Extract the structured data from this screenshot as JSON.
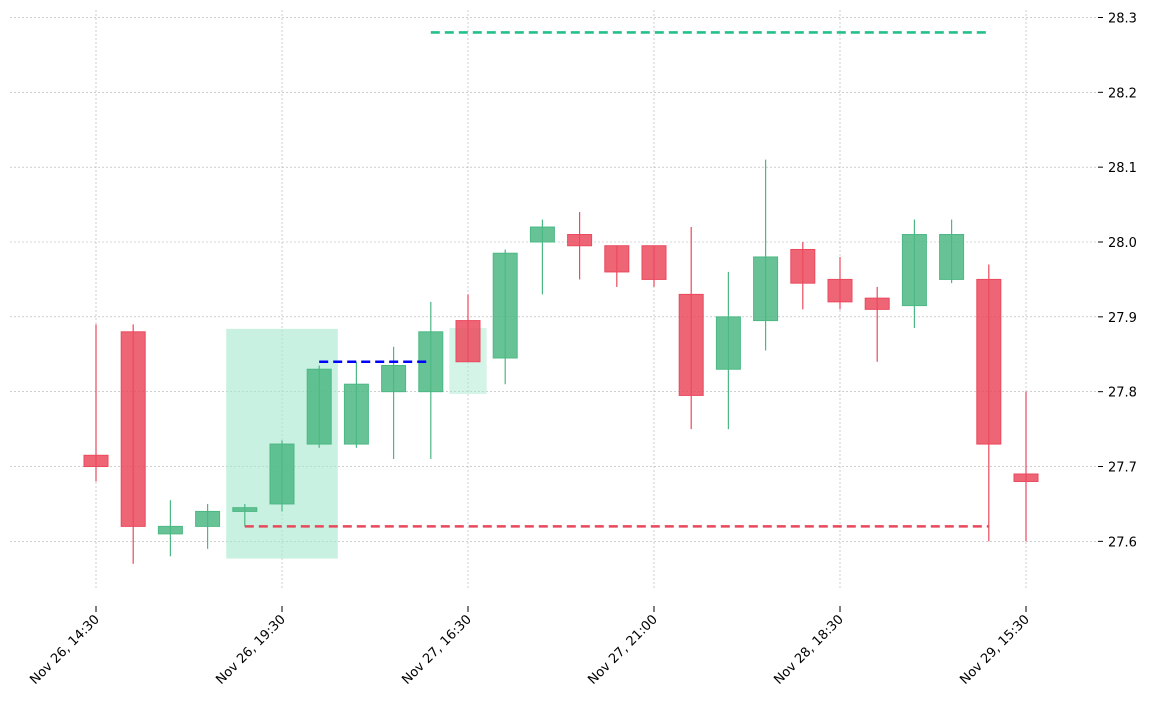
{
  "chart_data": {
    "type": "candlestick",
    "title": "",
    "xlabel": "",
    "ylabel": "",
    "ylim": [
      27.535,
      28.31
    ],
    "grid": true,
    "y_axis_side": "right",
    "y_ticks": [
      27.6,
      27.7,
      27.8,
      27.9,
      28.0,
      28.1,
      28.2,
      28.3
    ],
    "y_tick_labels": [
      "27.6",
      "27.7",
      "27.8",
      "27.9",
      "28.0",
      "28.1",
      "28.2",
      "28.3"
    ],
    "x_ticks": [
      {
        "index": 0,
        "label": "Nov 26, 14:30"
      },
      {
        "index": 5,
        "label": "Nov 26, 19:30"
      },
      {
        "index": 10,
        "label": "Nov 27, 16:30"
      },
      {
        "index": 15,
        "label": "Nov 27, 21:00"
      },
      {
        "index": 20,
        "label": "Nov 28, 18:30"
      },
      {
        "index": 25,
        "label": "Nov 29, 15:30"
      }
    ],
    "colors": {
      "up": "#4cb884",
      "down": "#eb4a5e",
      "zone_fill": "#a7e9cf",
      "target_line": "#25c08a",
      "stop_line": "#e8485c",
      "entry_line": "#0000ff"
    },
    "candles": [
      {
        "index": 0,
        "open": 27.715,
        "high": 27.89,
        "low": 27.68,
        "close": 27.7
      },
      {
        "index": 1,
        "open": 27.88,
        "high": 27.89,
        "low": 27.57,
        "close": 27.62
      },
      {
        "index": 2,
        "open": 27.61,
        "high": 27.655,
        "low": 27.58,
        "close": 27.62
      },
      {
        "index": 3,
        "open": 27.62,
        "high": 27.65,
        "low": 27.59,
        "close": 27.64
      },
      {
        "index": 4,
        "open": 27.64,
        "high": 27.65,
        "low": 27.62,
        "close": 27.645
      },
      {
        "index": 5,
        "open": 27.65,
        "high": 27.735,
        "low": 27.64,
        "close": 27.73
      },
      {
        "index": 6,
        "open": 27.73,
        "high": 27.835,
        "low": 27.725,
        "close": 27.83
      },
      {
        "index": 7,
        "open": 27.73,
        "high": 27.84,
        "low": 27.725,
        "close": 27.81
      },
      {
        "index": 8,
        "open": 27.8,
        "high": 27.86,
        "low": 27.71,
        "close": 27.835
      },
      {
        "index": 9,
        "open": 27.8,
        "high": 27.92,
        "low": 27.71,
        "close": 27.88
      },
      {
        "index": 10,
        "open": 27.895,
        "high": 27.93,
        "low": 27.84,
        "close": 27.84
      },
      {
        "index": 11,
        "open": 27.845,
        "high": 27.99,
        "low": 27.81,
        "close": 27.985
      },
      {
        "index": 12,
        "open": 28.0,
        "high": 28.03,
        "low": 27.93,
        "close": 28.02
      },
      {
        "index": 13,
        "open": 28.01,
        "high": 28.04,
        "low": 27.95,
        "close": 27.995
      },
      {
        "index": 14,
        "open": 27.995,
        "high": 27.995,
        "low": 27.94,
        "close": 27.96
      },
      {
        "index": 15,
        "open": 27.995,
        "high": 27.995,
        "low": 27.94,
        "close": 27.95
      },
      {
        "index": 16,
        "open": 27.93,
        "high": 28.02,
        "low": 27.75,
        "close": 27.795
      },
      {
        "index": 17,
        "open": 27.83,
        "high": 27.96,
        "low": 27.75,
        "close": 27.9
      },
      {
        "index": 18,
        "open": 27.895,
        "high": 28.11,
        "low": 27.855,
        "close": 27.98
      },
      {
        "index": 19,
        "open": 27.99,
        "high": 28.0,
        "low": 27.91,
        "close": 27.945
      },
      {
        "index": 20,
        "open": 27.95,
        "high": 27.98,
        "low": 27.91,
        "close": 27.92
      },
      {
        "index": 21,
        "open": 27.925,
        "high": 27.94,
        "low": 27.84,
        "close": 27.91
      },
      {
        "index": 22,
        "open": 27.915,
        "high": 28.03,
        "low": 27.885,
        "close": 28.01
      },
      {
        "index": 23,
        "open": 27.95,
        "high": 28.03,
        "low": 27.945,
        "close": 28.01
      },
      {
        "index": 24,
        "open": 27.95,
        "high": 27.97,
        "low": 27.6,
        "close": 27.73
      },
      {
        "index": 25,
        "open": 27.69,
        "high": 27.8,
        "low": 27.6,
        "close": 27.68
      }
    ],
    "zones": [
      {
        "name": "pattern-zone-main",
        "x_start": 3.5,
        "x_end": 6.5,
        "y_low": 27.577,
        "y_high": 27.884,
        "opacity": 0.62
      },
      {
        "name": "pattern-zone-small",
        "x_start": 9.5,
        "x_end": 10.5,
        "y_low": 27.797,
        "y_high": 27.885,
        "opacity": 0.5
      }
    ],
    "levels": [
      {
        "name": "target-line",
        "x_start": 9,
        "x_end": 24,
        "y": 28.28,
        "color_key": "target_line"
      },
      {
        "name": "stop-line",
        "x_start": 4,
        "x_end": 24,
        "y": 27.62,
        "color_key": "stop_line"
      },
      {
        "name": "entry-line",
        "x_start": 6,
        "x_end": 9,
        "y": 27.84,
        "color_key": "entry_line"
      }
    ]
  }
}
